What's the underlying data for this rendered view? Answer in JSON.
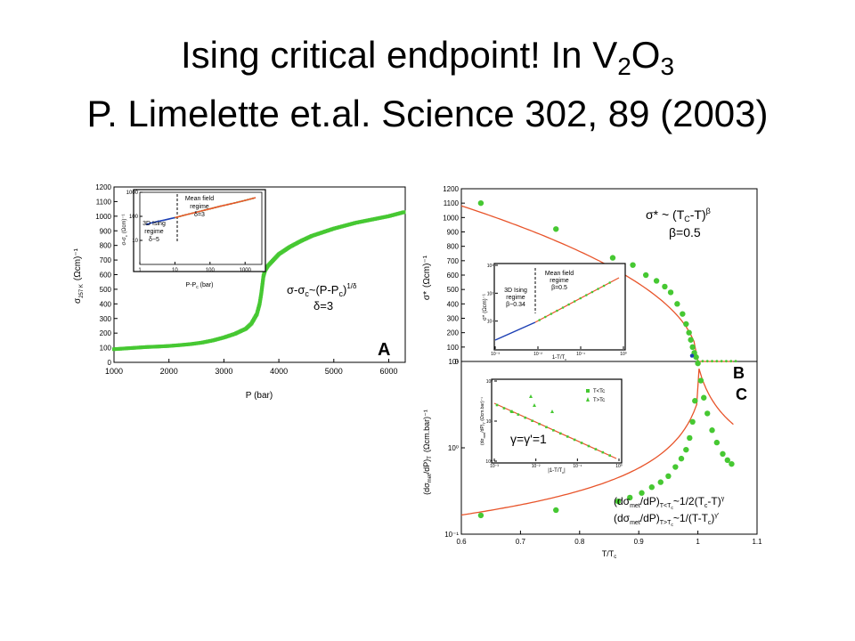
{
  "slide": {
    "title_line1_pre": "Ising critical endpoint!  In V",
    "title_sub1": "2",
    "title_mid": "O",
    "title_sub2": "3",
    "title_line2": "P. Limelette et.al. Science 302, 89 (2003)"
  },
  "colors": {
    "data_green": "#46c832",
    "fit_red": "#e8542a",
    "fit_blue": "#1c3fb4"
  },
  "chart_data": [
    {
      "id": "A",
      "type": "scatter",
      "panel_label": "A",
      "xlabel": "P (bar)",
      "ylabel": "σ",
      "ylabel_sub": "257 K",
      "ylabel_unit": "(Ωcm)⁻¹",
      "xlim": [
        1000,
        6300
      ],
      "ylim": [
        0,
        1200
      ],
      "xticks": [
        1000,
        2000,
        3000,
        4000,
        5000,
        6000
      ],
      "yticks": [
        0,
        100,
        200,
        300,
        400,
        500,
        600,
        700,
        800,
        900,
        1000,
        1100,
        1200
      ],
      "annotation_line1": "σ-σ",
      "annotation_sub": "c",
      "annotation_line1b": "~(P-P",
      "annotation_sub2": "c",
      "annotation_line1c": ")",
      "annotation_sup": "1/δ",
      "annotation_line2": "δ=3",
      "series": [
        {
          "x": [
            1000,
            1200,
            1400,
            1600,
            1800,
            2000,
            2200,
            2400,
            2600,
            2800,
            3000,
            3200,
            3400,
            3500,
            3600,
            3650,
            3680,
            3700,
            3720,
            3750,
            3800,
            3900,
            4000,
            4200,
            4400,
            4600,
            4800,
            5000,
            5200,
            5400,
            5600,
            5800,
            6000,
            6200,
            6300
          ],
          "y": [
            90,
            95,
            100,
            105,
            108,
            112,
            118,
            125,
            135,
            150,
            170,
            195,
            230,
            265,
            330,
            400,
            470,
            530,
            590,
            630,
            660,
            700,
            740,
            790,
            830,
            865,
            890,
            915,
            935,
            955,
            970,
            985,
            1000,
            1020,
            1030
          ]
        }
      ],
      "inset": {
        "xlabel": "P-P",
        "xlabel_sub": "c",
        "xlabel_unit": " (bar)",
        "ylabel": "σ-σ",
        "ylabel_sub": "c",
        "ylabel_unit": "(Ωcm)⁻¹",
        "scale": "log-log",
        "xlim": [
          1,
          3000
        ],
        "ylim": [
          1,
          1000
        ],
        "xticks": [
          1,
          10,
          100,
          1000
        ],
        "yticks": [
          10,
          100,
          1000
        ],
        "regime_left_l1": "3D Ising",
        "regime_left_l2": "regime",
        "regime_left_l3": "δ~5",
        "regime_right_l1": "Mean field",
        "regime_right_l2": "regime",
        "regime_right_l3": "δ=3",
        "ising_x": [
          1.5,
          2,
          3,
          5,
          8,
          10
        ],
        "ising_y": [
          45,
          52,
          60,
          70,
          82,
          88
        ],
        "mf_x": [
          10,
          20,
          50,
          100,
          200,
          500,
          1000,
          2000
        ],
        "mf_y": [
          88,
          115,
          160,
          205,
          265,
          360,
          460,
          600
        ]
      }
    },
    {
      "id": "B",
      "type": "scatter",
      "panel_label": "B",
      "ylabel": "σ*",
      "ylabel_unit": "(Ωcm)⁻¹",
      "xlim": [
        0.6,
        1.1
      ],
      "ylim": [
        0,
        1200
      ],
      "yticks": [
        0,
        100,
        200,
        300,
        400,
        500,
        600,
        700,
        800,
        900,
        1000,
        1100,
        1200
      ],
      "annotation_l1": "σ* ~ (T",
      "annotation_sub1": "C",
      "annotation_l1b": "-T)",
      "annotation_sup": "β",
      "annotation_l2": "β=0.5",
      "points_x": [
        0.633,
        0.76,
        0.856,
        0.89,
        0.912,
        0.93,
        0.944,
        0.954,
        0.965,
        0.974,
        0.98,
        0.985,
        0.988,
        0.991,
        0.994,
        0.997
      ],
      "points_y": [
        1100,
        920,
        720,
        670,
        600,
        560,
        520,
        480,
        400,
        330,
        260,
        200,
        150,
        100,
        60,
        30
      ],
      "inset": {
        "xlabel": "1-T/T",
        "xlabel_sub": "c",
        "ylabel": "σ*",
        "ylabel_unit": "(Ωcm)⁻¹",
        "scale": "log-log",
        "xlim": [
          0.001,
          1
        ],
        "ylim": [
          1,
          1000
        ],
        "xticks": [
          0.001,
          0.01,
          0.1,
          1
        ],
        "yticks": [
          10,
          100,
          1000
        ],
        "regime_left_l1": "3D Ising",
        "regime_left_l2": "regime",
        "regime_left_l3": "β~0.34",
        "regime_right_l1": "Mean field",
        "regime_right_l2": "regime",
        "regime_right_l3": "β=0.5"
      }
    },
    {
      "id": "C",
      "type": "scatter",
      "panel_label": "C",
      "xlabel": "T/T",
      "xlabel_sub": "c",
      "ylabel": "(dσ",
      "ylabel_sub": "met",
      "ylabel_rest": "/dP)",
      "ylabel_sub2": "T",
      "ylabel_unit": "(Ωcm.bar)⁻¹",
      "scale_y": "log",
      "xlim": [
        0.6,
        1.1
      ],
      "ylim": [
        0.1,
        10
      ],
      "xticks": [
        0.6,
        0.7,
        0.8,
        0.9,
        1.0,
        1.1
      ],
      "ytick_labels": [
        "10⁻¹",
        "10⁰",
        "10¹"
      ],
      "yticks": [
        0.1,
        1,
        10
      ],
      "formula1_pre": "(dσ",
      "formula1_sub": "met",
      "formula1_mid": "/dP)",
      "formula1_sub2": "T<T",
      "formula1_sub2b": "c",
      "formula1_post": "~1/2(T",
      "formula1_sub3": "c",
      "formula1_end": "-T)",
      "formula1_sup": "γ",
      "formula2_pre": "(dσ",
      "formula2_sub": "met",
      "formula2_mid": "/dP)",
      "formula2_sub2": "T>T",
      "formula2_sub2b": "c",
      "formula2_post": "~1/(T-T",
      "formula2_sub3": "c",
      "formula2_end": ")",
      "formula2_sup": "γ'",
      "points_x": [
        0.633,
        0.76,
        0.865,
        0.885,
        0.905,
        0.922,
        0.937,
        0.95,
        0.962,
        0.972,
        0.98,
        0.986,
        0.991,
        0.995,
        1.0,
        1.005,
        1.01,
        1.016,
        1.024,
        1.032,
        1.042,
        1.05,
        1.057
      ],
      "points_y": [
        0.165,
        0.19,
        0.24,
        0.265,
        0.3,
        0.35,
        0.4,
        0.47,
        0.6,
        0.75,
        0.95,
        1.3,
        2.0,
        3.5,
        9.5,
        6.0,
        3.8,
        2.5,
        1.6,
        1.15,
        0.85,
        0.72,
        0.65
      ],
      "inset": {
        "xlabel": "|1-T/T",
        "xlabel_sub": "c",
        "xlabel_end": "|",
        "ylabel": "(dσ",
        "ylabel_sub": "met",
        "ylabel_rest": "/dP)",
        "ylabel_sub2": "T",
        "ylabel_unit": " (Ωcm.bar)⁻¹",
        "scale": "log-log",
        "xticks": [
          0.001,
          0.01,
          0.1,
          1
        ],
        "yticks": [
          1,
          10,
          100
        ],
        "legend": [
          "T<Tc",
          "T>Tc"
        ],
        "gamma_label": "γ=γ'=1"
      }
    }
  ]
}
